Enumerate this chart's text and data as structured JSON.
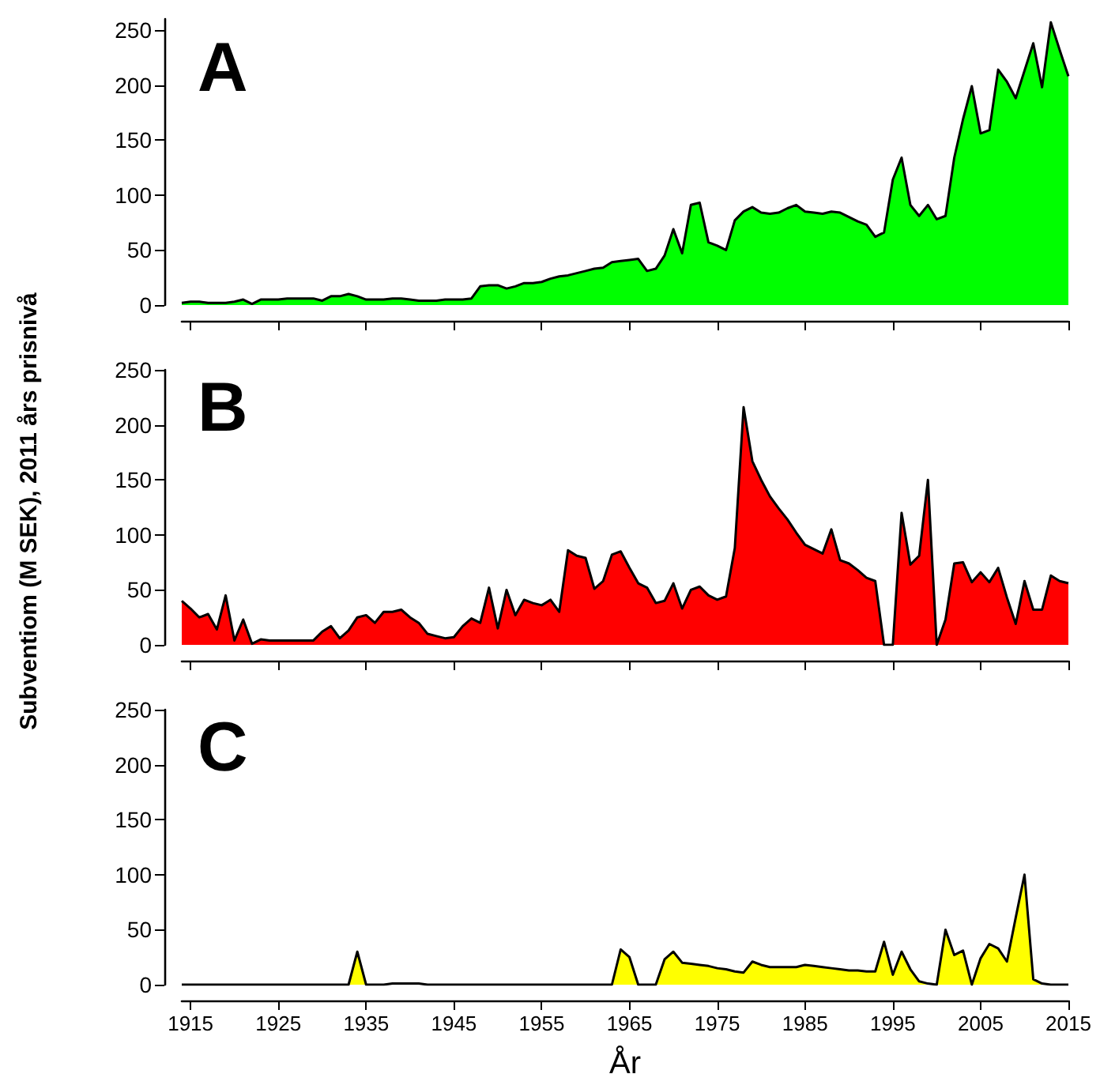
{
  "chart_data": [
    {
      "type": "area",
      "title": "A",
      "x": [
        1914,
        1915,
        1916,
        1917,
        1918,
        1919,
        1920,
        1921,
        1922,
        1923,
        1924,
        1925,
        1926,
        1927,
        1928,
        1929,
        1930,
        1931,
        1932,
        1933,
        1934,
        1935,
        1936,
        1937,
        1938,
        1939,
        1940,
        1941,
        1942,
        1943,
        1944,
        1945,
        1946,
        1947,
        1948,
        1949,
        1950,
        1951,
        1952,
        1953,
        1954,
        1955,
        1956,
        1957,
        1958,
        1959,
        1960,
        1961,
        1962,
        1963,
        1964,
        1965,
        1966,
        1967,
        1968,
        1969,
        1970,
        1971,
        1972,
        1973,
        1974,
        1975,
        1976,
        1977,
        1978,
        1979,
        1980,
        1981,
        1982,
        1983,
        1984,
        1985,
        1986,
        1987,
        1988,
        1989,
        1990,
        1991,
        1992,
        1993,
        1994,
        1995,
        1996,
        1997,
        1998,
        1999,
        2000,
        2001,
        2002,
        2003,
        2004,
        2005,
        2006,
        2007,
        2008,
        2009,
        2010,
        2011,
        2012,
        2013,
        2014,
        2015
      ],
      "series": [
        {
          "color": "#00ff00",
          "values": [
            2,
            3,
            3,
            2,
            2,
            2,
            3,
            5,
            1,
            5,
            5,
            5,
            6,
            6,
            6,
            6,
            4,
            8,
            8,
            10,
            8,
            5,
            5,
            5,
            6,
            6,
            5,
            4,
            4,
            4,
            5,
            5,
            5,
            6,
            17,
            18,
            18,
            15,
            17,
            20,
            20,
            21,
            24,
            26,
            27,
            29,
            31,
            33,
            34,
            39,
            40,
            41,
            42,
            31,
            33,
            45,
            69,
            47,
            91,
            93,
            57,
            54,
            50,
            77,
            85,
            89,
            84,
            83,
            84,
            88,
            91,
            85,
            84,
            83,
            85,
            84,
            80,
            76,
            73,
            62,
            66,
            114,
            134,
            91,
            81,
            91,
            78,
            81,
            134,
            169,
            199,
            156,
            159,
            214,
            203,
            188,
            213,
            238,
            198,
            257,
            232,
            208
          ]
        }
      ],
      "xlim": [
        1914,
        2015
      ],
      "xticks": [
        1915,
        1925,
        1935,
        1945,
        1955,
        1965,
        1975,
        1985,
        1995,
        2005,
        2015
      ],
      "ylim": [
        0,
        260
      ],
      "yticks": [
        0,
        50,
        100,
        150,
        200,
        250
      ],
      "tick_labels": "y"
    },
    {
      "type": "area",
      "title": "B",
      "ylabel": "Subventiom (M SEK), 2011 års prisnivå",
      "x": [
        1914,
        1915,
        1916,
        1917,
        1918,
        1919,
        1920,
        1921,
        1922,
        1923,
        1924,
        1925,
        1926,
        1927,
        1928,
        1929,
        1930,
        1931,
        1932,
        1933,
        1934,
        1935,
        1936,
        1937,
        1938,
        1939,
        1940,
        1941,
        1942,
        1943,
        1944,
        1945,
        1946,
        1947,
        1948,
        1949,
        1950,
        1951,
        1952,
        1953,
        1954,
        1955,
        1956,
        1957,
        1958,
        1959,
        1960,
        1961,
        1962,
        1963,
        1964,
        1965,
        1966,
        1967,
        1968,
        1969,
        1970,
        1971,
        1972,
        1973,
        1974,
        1975,
        1976,
        1977,
        1978,
        1979,
        1980,
        1981,
        1982,
        1983,
        1984,
        1985,
        1986,
        1987,
        1988,
        1989,
        1990,
        1991,
        1992,
        1993,
        1994,
        1995,
        1996,
        1997,
        1998,
        1999,
        2000,
        2001,
        2002,
        2003,
        2004,
        2005,
        2006,
        2007,
        2008,
        2009,
        2010,
        2011,
        2012,
        2013,
        2014,
        2015
      ],
      "series": [
        {
          "color": "#ff0000",
          "values": [
            40,
            33,
            25,
            28,
            14,
            45,
            4,
            23,
            1,
            5,
            4,
            4,
            4,
            4,
            4,
            4,
            12,
            17,
            6,
            13,
            25,
            27,
            20,
            30,
            30,
            32,
            25,
            20,
            10,
            8,
            6,
            7,
            17,
            24,
            20,
            52,
            15,
            50,
            27,
            41,
            38,
            36,
            41,
            30,
            86,
            81,
            79,
            51,
            58,
            82,
            85,
            70,
            56,
            52,
            38,
            40,
            56,
            33,
            50,
            53,
            45,
            41,
            44,
            88,
            216,
            167,
            150,
            135,
            124,
            114,
            102,
            91,
            87,
            83,
            105,
            77,
            74,
            68,
            61,
            58,
            0,
            0,
            120,
            73,
            81,
            150,
            0,
            23,
            74,
            75,
            57,
            66,
            57,
            70,
            43,
            19,
            58,
            32,
            32,
            63,
            58,
            56
          ]
        }
      ],
      "xlim": [
        1914,
        2015
      ],
      "xticks": [
        1915,
        1925,
        1935,
        1945,
        1955,
        1965,
        1975,
        1985,
        1995,
        2005,
        2015
      ],
      "ylim": [
        0,
        250
      ],
      "yticks": [
        0,
        50,
        100,
        150,
        200,
        250
      ],
      "tick_labels": "y"
    },
    {
      "type": "area",
      "title": "C",
      "xlabel": "År",
      "x": [
        1914,
        1915,
        1916,
        1917,
        1918,
        1919,
        1920,
        1921,
        1922,
        1923,
        1924,
        1925,
        1926,
        1927,
        1928,
        1929,
        1930,
        1931,
        1932,
        1933,
        1934,
        1935,
        1936,
        1937,
        1938,
        1939,
        1940,
        1941,
        1942,
        1943,
        1944,
        1945,
        1946,
        1947,
        1948,
        1949,
        1950,
        1951,
        1952,
        1953,
        1954,
        1955,
        1956,
        1957,
        1958,
        1959,
        1960,
        1961,
        1962,
        1963,
        1964,
        1965,
        1966,
        1967,
        1968,
        1969,
        1970,
        1971,
        1972,
        1973,
        1974,
        1975,
        1976,
        1977,
        1978,
        1979,
        1980,
        1981,
        1982,
        1983,
        1984,
        1985,
        1986,
        1987,
        1988,
        1989,
        1990,
        1991,
        1992,
        1993,
        1994,
        1995,
        1996,
        1997,
        1998,
        1999,
        2000,
        2001,
        2002,
        2003,
        2004,
        2005,
        2006,
        2007,
        2008,
        2009,
        2010,
        2011,
        2012,
        2013,
        2014,
        2015
      ],
      "series": [
        {
          "color": "#ffff00",
          "values": [
            0,
            0,
            0,
            0,
            0,
            0,
            0,
            0,
            0,
            0,
            0,
            0,
            0,
            0,
            0,
            0,
            0,
            0,
            0,
            0,
            30,
            0,
            0,
            0,
            1,
            1,
            1,
            1,
            0,
            0,
            0,
            0,
            0,
            0,
            0,
            0,
            0,
            0,
            0,
            0,
            0,
            0,
            0,
            0,
            0,
            0,
            0,
            0,
            0,
            0,
            32,
            25,
            0,
            0,
            0,
            23,
            30,
            20,
            19,
            18,
            17,
            15,
            14,
            12,
            11,
            21,
            18,
            16,
            16,
            16,
            16,
            18,
            17,
            16,
            15,
            14,
            13,
            13,
            12,
            12,
            39,
            9,
            30,
            14,
            3,
            1,
            0,
            50,
            27,
            31,
            0,
            24,
            37,
            33,
            21,
            61,
            100,
            5,
            1,
            0,
            0,
            0
          ]
        }
      ],
      "xlim": [
        1914,
        2015
      ],
      "xticks": [
        1915,
        1925,
        1935,
        1945,
        1955,
        1965,
        1975,
        1985,
        1995,
        2005,
        2015
      ],
      "ylim": [
        0,
        250
      ],
      "yticks": [
        0,
        50,
        100,
        150,
        200,
        250
      ]
    }
  ]
}
